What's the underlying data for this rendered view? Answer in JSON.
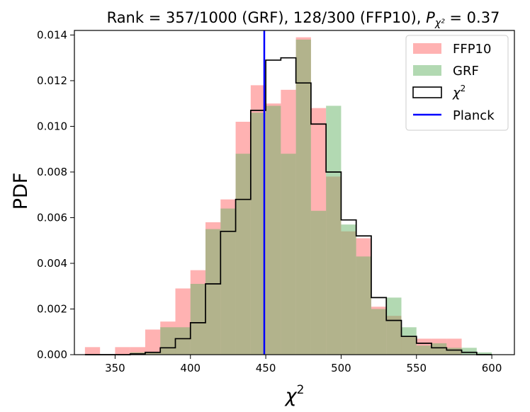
{
  "chart_data": {
    "type": "bar",
    "title_main": "Rank = 357/1000 (GRF), 128/300 (FFP10), ",
    "title_p_symbol": "P",
    "title_p_sub": "χ²",
    "title_p_value": " = 0.37",
    "xlabel_base": "χ",
    "xlabel_sup": "2",
    "ylabel": "PDF",
    "xlim": [
      323,
      615
    ],
    "ylim": [
      0,
      0.0142
    ],
    "x_ticks": [
      350,
      400,
      450,
      500,
      550,
      600
    ],
    "y_ticks": [
      0.0,
      0.002,
      0.004,
      0.006,
      0.008,
      0.01,
      0.012,
      0.014
    ],
    "y_tick_labels": [
      "0.000",
      "0.002",
      "0.004",
      "0.006",
      "0.008",
      "0.010",
      "0.012",
      "0.014"
    ],
    "bin_edges": [
      330,
      340,
      350,
      360,
      370,
      380,
      390,
      400,
      410,
      420,
      430,
      440,
      450,
      460,
      470,
      480,
      490,
      500,
      510,
      520,
      530,
      540,
      550,
      560,
      570,
      580,
      590,
      600
    ],
    "series": [
      {
        "name": "FFP10",
        "color": "#ff6666",
        "opacity": 0.5,
        "values": [
          0.00033,
          0,
          0.00033,
          0.00033,
          0.0011,
          0.00145,
          0.0029,
          0.0037,
          0.0058,
          0.0068,
          0.0102,
          0.0118,
          0.011,
          0.0116,
          0.0139,
          0.0108,
          0.0078,
          0.0054,
          0.0051,
          0.0021,
          0.0017,
          0.0008,
          0.0007,
          0.0007,
          0.0007,
          0,
          0,
          0
        ]
      },
      {
        "name": "GRF",
        "color": "#66b366",
        "opacity": 0.5,
        "values": [
          0,
          0,
          0,
          0.0001,
          0.0001,
          0.0012,
          0.0012,
          0.0031,
          0.0055,
          0.0064,
          0.0088,
          0.0106,
          0.0109,
          0.0088,
          0.0138,
          0.0063,
          0.0109,
          0.0057,
          0.0043,
          0.002,
          0.0025,
          0.0012,
          0.0004,
          0.0005,
          0.0003,
          0.0003,
          0.0001,
          0.0001
        ]
      }
    ],
    "step": {
      "name": "χ²",
      "color": "#000000",
      "values": [
        0,
        0,
        0,
        3e-05,
        0.0001,
        0.0003,
        0.0007,
        0.0014,
        0.0031,
        0.0054,
        0.0068,
        0.0107,
        0.0129,
        0.013,
        0.0119,
        0.0101,
        0.008,
        0.0059,
        0.0052,
        0.0025,
        0.0015,
        0.0008,
        0.0005,
        0.0003,
        0.0002,
        0.0001,
        0,
        0
      ]
    },
    "vline": {
      "name": "Planck",
      "x": 449,
      "color": "#0000ff"
    },
    "legend": {
      "position": "top-right",
      "entries": [
        {
          "label": "FFP10",
          "kind": "patch",
          "color": "#ff6666",
          "opacity": 0.5
        },
        {
          "label": "GRF",
          "kind": "patch",
          "color": "#66b366",
          "opacity": 0.5
        },
        {
          "label_base": "χ",
          "label_sup": "2",
          "kind": "outline",
          "color": "#000000"
        },
        {
          "label": "Planck",
          "kind": "line",
          "color": "#0000ff"
        }
      ]
    }
  }
}
